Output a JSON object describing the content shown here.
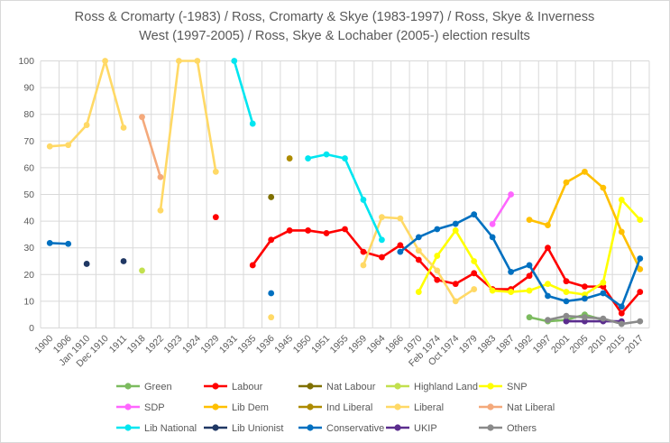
{
  "chart_data": {
    "type": "line",
    "title_line1": "Ross & Cromarty (-1983) / Ross, Cromarty & Skye (1983-1997) / Ross, Skye & Inverness",
    "title_line2": "West (1997-2005) / Ross, Skye & Lochaber (2005-) election results",
    "title_color": "#595959",
    "grid": true,
    "grid_color": "#d9d9d9",
    "axis_text_color": "#595959",
    "legend_position": "bottom",
    "ylim": [
      0,
      100
    ],
    "y_ticks": [
      0,
      10,
      20,
      30,
      40,
      50,
      60,
      70,
      80,
      90,
      100
    ],
    "categories": [
      "1900",
      "1906",
      "Jan 1910",
      "Dec 1910",
      "1911",
      "1918",
      "1922",
      "1923",
      "1924",
      "1929",
      "1931",
      "1935",
      "1936",
      "1945",
      "1950",
      "1951",
      "1955",
      "1959",
      "1964",
      "1966",
      "1970",
      "Feb 1974",
      "Oct 1974",
      "1979",
      "1983",
      "1987",
      "1992",
      "1997",
      "2001",
      "2005",
      "2010",
      "2015",
      "2017"
    ],
    "series": [
      {
        "name": "Green",
        "color": "#7cbb5f",
        "values": [
          null,
          null,
          null,
          null,
          null,
          null,
          null,
          null,
          null,
          null,
          null,
          null,
          null,
          null,
          null,
          null,
          null,
          null,
          null,
          null,
          null,
          null,
          null,
          null,
          null,
          null,
          4,
          2.5,
          3,
          5,
          3,
          2,
          null
        ]
      },
      {
        "name": "Labour",
        "color": "#ff0000",
        "values": [
          null,
          null,
          null,
          null,
          null,
          null,
          null,
          null,
          null,
          41.5,
          null,
          23.5,
          33,
          36.5,
          36.5,
          35.5,
          37,
          28.5,
          26.5,
          31,
          25.5,
          18,
          16.5,
          20.5,
          14.5,
          14.5,
          19.5,
          30,
          17.5,
          15.5,
          15.5,
          5.5,
          13.5
        ]
      },
      {
        "name": "Nat Labour",
        "color": "#7f7000",
        "values": [
          null,
          null,
          null,
          null,
          null,
          null,
          null,
          null,
          null,
          null,
          null,
          null,
          49,
          null,
          null,
          null,
          null,
          null,
          null,
          null,
          null,
          null,
          null,
          null,
          null,
          null,
          null,
          null,
          null,
          null,
          null,
          null,
          null
        ]
      },
      {
        "name": "Highland Land",
        "color": "#c2e04e",
        "values": [
          null,
          null,
          null,
          null,
          null,
          21.5,
          null,
          null,
          null,
          null,
          null,
          null,
          null,
          null,
          null,
          null,
          null,
          null,
          null,
          null,
          null,
          null,
          null,
          null,
          null,
          null,
          null,
          null,
          null,
          null,
          null,
          null,
          null
        ]
      },
      {
        "name": "SNP",
        "color": "#ffff00",
        "values": [
          null,
          null,
          null,
          null,
          null,
          null,
          null,
          null,
          null,
          null,
          null,
          null,
          null,
          null,
          null,
          null,
          null,
          null,
          null,
          null,
          13.5,
          27,
          36.5,
          25,
          14,
          13.5,
          14,
          16.5,
          13.5,
          12.5,
          17,
          48,
          40.5
        ]
      },
      {
        "name": "SDP",
        "color": "#ff66ff",
        "values": [
          null,
          null,
          null,
          null,
          null,
          null,
          null,
          null,
          null,
          null,
          null,
          null,
          null,
          null,
          null,
          null,
          null,
          null,
          null,
          null,
          null,
          null,
          null,
          null,
          38.9,
          50,
          null,
          null,
          null,
          null,
          null,
          null,
          null
        ]
      },
      {
        "name": "Lib Dem",
        "color": "#ffc000",
        "values": [
          null,
          null,
          null,
          null,
          null,
          null,
          null,
          null,
          null,
          null,
          null,
          null,
          null,
          null,
          null,
          null,
          null,
          null,
          null,
          null,
          null,
          null,
          null,
          null,
          null,
          null,
          40.5,
          38.5,
          54.5,
          58.5,
          52.5,
          36,
          22
        ]
      },
      {
        "name": "Ind Liberal",
        "color": "#ad8b00",
        "values": [
          null,
          null,
          null,
          null,
          null,
          null,
          null,
          null,
          null,
          null,
          null,
          null,
          null,
          63.5,
          null,
          null,
          null,
          null,
          null,
          null,
          null,
          null,
          null,
          null,
          null,
          null,
          null,
          null,
          null,
          null,
          null,
          null,
          null
        ]
      },
      {
        "name": "Liberal",
        "color": "#ffd966",
        "values": [
          68,
          68.5,
          76,
          100,
          75,
          null,
          44,
          100,
          100,
          58.5,
          null,
          null,
          4,
          null,
          null,
          null,
          null,
          23.5,
          41.5,
          41,
          29,
          21.5,
          10,
          14.5,
          null,
          null,
          null,
          null,
          null,
          null,
          null,
          null,
          null
        ]
      },
      {
        "name": "Nat Liberal",
        "color": "#f4a97b",
        "values": [
          null,
          null,
          null,
          null,
          null,
          79,
          56.5,
          null,
          null,
          null,
          null,
          null,
          null,
          null,
          null,
          null,
          null,
          null,
          null,
          null,
          null,
          null,
          null,
          null,
          null,
          null,
          null,
          null,
          null,
          null,
          null,
          null,
          null
        ]
      },
      {
        "name": "Lib National",
        "color": "#00e6f0",
        "values": [
          null,
          null,
          null,
          null,
          null,
          null,
          null,
          null,
          null,
          null,
          100,
          76.5,
          null,
          null,
          63.5,
          65,
          63.5,
          48,
          33,
          null,
          null,
          null,
          null,
          null,
          null,
          null,
          null,
          null,
          null,
          null,
          null,
          null,
          null
        ]
      },
      {
        "name": "Lib Unionist",
        "color": "#203864",
        "values": [
          null,
          null,
          24,
          null,
          25,
          null,
          null,
          null,
          null,
          null,
          null,
          null,
          null,
          null,
          null,
          null,
          null,
          null,
          null,
          null,
          null,
          null,
          null,
          null,
          null,
          null,
          null,
          null,
          null,
          null,
          null,
          null,
          null
        ]
      },
      {
        "name": "Conservative",
        "color": "#0070c0",
        "values": [
          31.8,
          31.5,
          null,
          null,
          null,
          null,
          null,
          null,
          null,
          null,
          null,
          null,
          13,
          null,
          null,
          null,
          null,
          null,
          null,
          28.5,
          34,
          37,
          39,
          42.5,
          34,
          21,
          23.5,
          12,
          10,
          11,
          13,
          8,
          26
        ]
      },
      {
        "name": "UKIP",
        "color": "#5b2d8e",
        "values": [
          null,
          null,
          null,
          null,
          null,
          null,
          null,
          null,
          null,
          null,
          null,
          null,
          null,
          null,
          null,
          null,
          null,
          null,
          null,
          null,
          null,
          null,
          null,
          null,
          null,
          null,
          null,
          null,
          2.5,
          2.5,
          2.5,
          2.5,
          null
        ]
      },
      {
        "name": "Others",
        "color": "#8a8a8a",
        "values": [
          null,
          null,
          null,
          null,
          null,
          null,
          null,
          null,
          null,
          null,
          null,
          null,
          null,
          null,
          null,
          null,
          null,
          null,
          null,
          null,
          null,
          null,
          null,
          null,
          null,
          null,
          null,
          3,
          4.5,
          4,
          3.5,
          1.5,
          2.5
        ]
      }
    ]
  }
}
